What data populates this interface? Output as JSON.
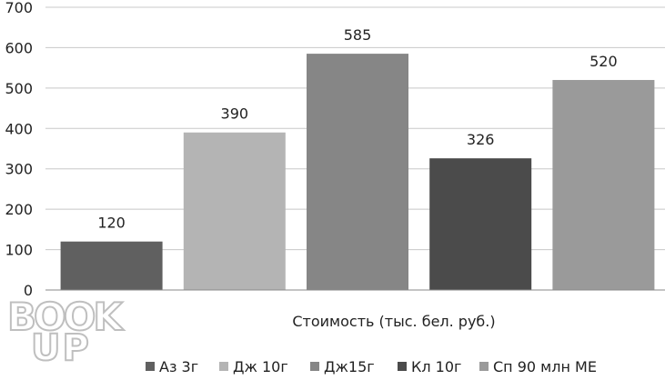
{
  "chart_data": {
    "type": "bar",
    "title": "",
    "xlabel": "Стоимость (тыс. бел. руб.)",
    "ylabel": "",
    "ylim": [
      0,
      700
    ],
    "yticks": [
      0,
      100,
      200,
      300,
      400,
      500,
      600,
      700
    ],
    "grid": true,
    "legend_position": "bottom",
    "categories": [
      ""
    ],
    "series": [
      {
        "name": "Аз 3г",
        "values": [
          120
        ],
        "color": "#606060"
      },
      {
        "name": "Дж 10г",
        "values": [
          390
        ],
        "color": "#b4b4b4"
      },
      {
        "name": "Дж15г",
        "values": [
          585
        ],
        "color": "#868686"
      },
      {
        "name": "Кл 10г",
        "values": [
          326
        ],
        "color": "#4b4b4b"
      },
      {
        "name": "Сп 90 млн МЕ",
        "values": [
          520
        ],
        "color": "#9a9a9a"
      }
    ]
  },
  "watermark": {
    "top": "BOOK",
    "bottom": "UP"
  }
}
